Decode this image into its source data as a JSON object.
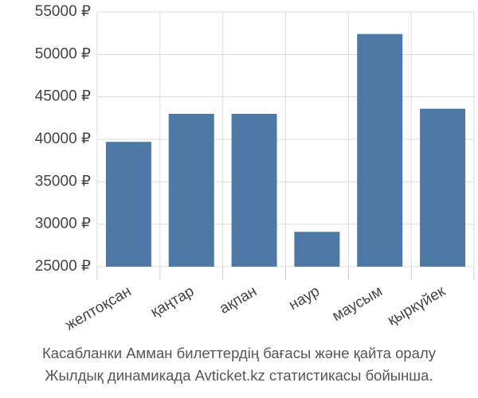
{
  "chart_data": {
    "type": "bar",
    "categories": [
      "желтоқсан",
      "қаңтар",
      "ақпан",
      "наур",
      "маусым",
      "қыркүйек"
    ],
    "values": [
      39700,
      43000,
      43000,
      29100,
      52400,
      43600
    ],
    "color": "#4e79a7",
    "ylim": [
      25000,
      55000
    ],
    "yticks": [
      {
        "value": 25000,
        "label": "25000 ₽"
      },
      {
        "value": 30000,
        "label": "30000 ₽"
      },
      {
        "value": 35000,
        "label": "35000 ₽"
      },
      {
        "value": 40000,
        "label": "40000 ₽"
      },
      {
        "value": 45000,
        "label": "45000 ₽"
      },
      {
        "value": 50000,
        "label": "50000 ₽"
      },
      {
        "value": 55000,
        "label": "55000 ₽"
      }
    ],
    "grid": true,
    "caption": [
      "Касабланки Амман билеттердің бағасы және қайта оралу",
      "Жылдық динамикада Avticket.kz статистикасы бойынша."
    ]
  }
}
